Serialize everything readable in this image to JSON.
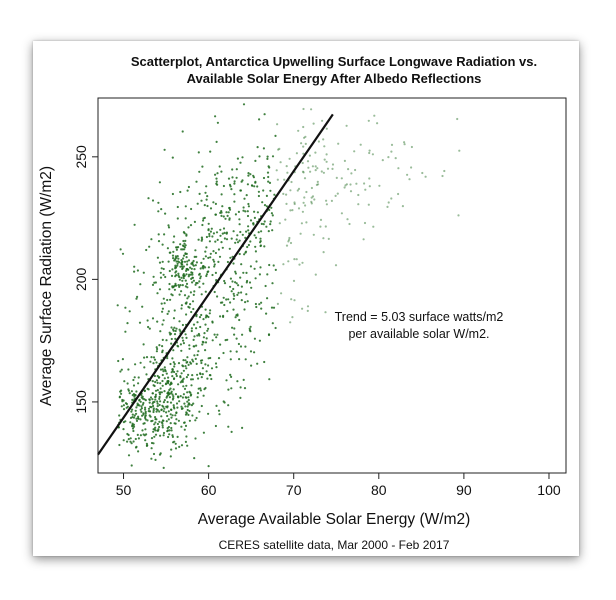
{
  "chart_data": {
    "type": "scatter",
    "title_lines": [
      "Scatterplot, Antarctica Upwelling Surface Longwave Radiation vs.",
      "Available Solar Energy After Albedo Reflections"
    ],
    "xlabel": "Average Available Solar Energy (W/m2)",
    "ylabel": "Average Surface Radiation (W/m2)",
    "caption": "CERES satellite data, Mar 2000 - Feb 2017",
    "annotation_lines": [
      "Trend = 5.03 surface watts/m2",
      "per available solar W/m2."
    ],
    "xlim": [
      47,
      102
    ],
    "ylim": [
      121,
      274
    ],
    "x_ticks": [
      50,
      60,
      70,
      80,
      90,
      100
    ],
    "y_ticks": [
      150,
      200,
      250
    ],
    "trend_line": {
      "slope": 5.03,
      "points": [
        [
          47,
          128.5
        ],
        [
          74.6,
          267.3
        ]
      ]
    },
    "point_color": "#1f6b1f",
    "clusters": [
      {
        "center": [
          51.5,
          145
        ],
        "spread": [
          2.5,
          9
        ],
        "count": 230
      },
      {
        "center": [
          55.5,
          152
        ],
        "spread": [
          2.0,
          11
        ],
        "count": 260
      },
      {
        "center": [
          56.8,
          204
        ],
        "spread": [
          1.0,
          6
        ],
        "count": 110
      },
      {
        "center": [
          58,
          180
        ],
        "spread": [
          4.0,
          22
        ],
        "count": 300
      },
      {
        "center": [
          62,
          208
        ],
        "spread": [
          4.5,
          20
        ],
        "count": 260
      },
      {
        "center": [
          66,
          228
        ],
        "spread": [
          4.5,
          16
        ],
        "count": 170
      },
      {
        "center": [
          72,
          245
        ],
        "spread": [
          5.0,
          12
        ],
        "count": 90
      },
      {
        "center": [
          80,
          248
        ],
        "spread": [
          5.0,
          12
        ],
        "count": 40
      }
    ]
  }
}
